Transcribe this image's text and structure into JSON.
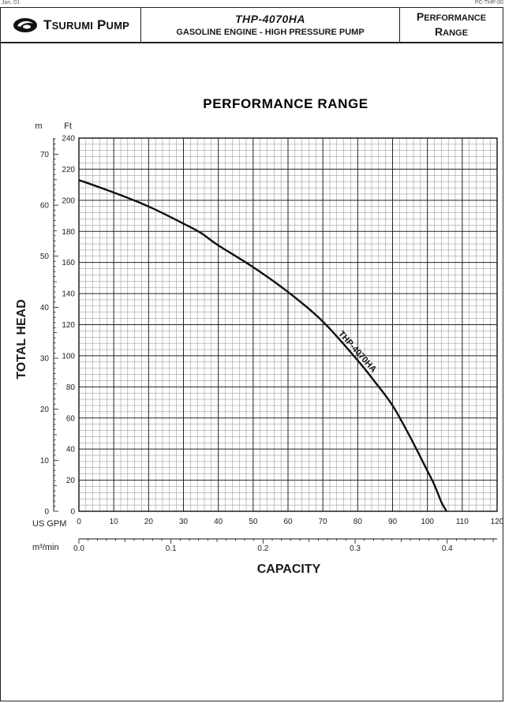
{
  "header": {
    "corner_left": "Jan. 01",
    "corner_right": "PC-THP-00",
    "brand_first": "T",
    "brand_rest": "SURUMI",
    "brand_second_first": "P",
    "brand_second_rest": "UMP",
    "model": "THP-4070HA",
    "description": "GASOLINE ENGINE - HIGH PRESSURE PUMP",
    "section_line1_first": "P",
    "section_line1_rest": "ERFORMANCE",
    "section_line2_first": "R",
    "section_line2_rest": "ANGE"
  },
  "chart_data": {
    "type": "line",
    "title": "PERFORMANCE RANGE",
    "ylabel": "TOTAL HEAD",
    "xlabel": "CAPACITY",
    "primary_y": {
      "unit": "Ft",
      "range": [
        0,
        240
      ],
      "ticks": [
        0,
        20,
        40,
        60,
        80,
        100,
        120,
        140,
        160,
        180,
        200,
        220,
        240
      ]
    },
    "secondary_y": {
      "unit": "m",
      "ticks": [
        0,
        10,
        20,
        30,
        40,
        50,
        60,
        70
      ]
    },
    "primary_x": {
      "unit": "US GPM",
      "range": [
        0,
        120
      ],
      "ticks": [
        0,
        10,
        20,
        30,
        40,
        50,
        60,
        70,
        80,
        90,
        100,
        110,
        120
      ]
    },
    "secondary_x": {
      "unit": "m³/min",
      "tick_labels": [
        "0.0",
        "0.1",
        "0.2",
        "0.3",
        "0.4"
      ]
    },
    "grid": true,
    "series": [
      {
        "name": "THP-4070HA",
        "x": [
          0,
          10,
          20,
          30,
          35,
          40,
          50,
          60,
          70,
          80,
          85,
          90,
          95,
          100,
          102,
          104,
          105.5
        ],
        "y": [
          213,
          205,
          196,
          185,
          179,
          171,
          157,
          141,
          122,
          97,
          83,
          68,
          48,
          26,
          17,
          6,
          0
        ]
      }
    ]
  },
  "colors": {
    "curve": "#111111",
    "grid_major": "#222222",
    "grid_minor": "#8a8a8a",
    "background": "#ffffff"
  }
}
